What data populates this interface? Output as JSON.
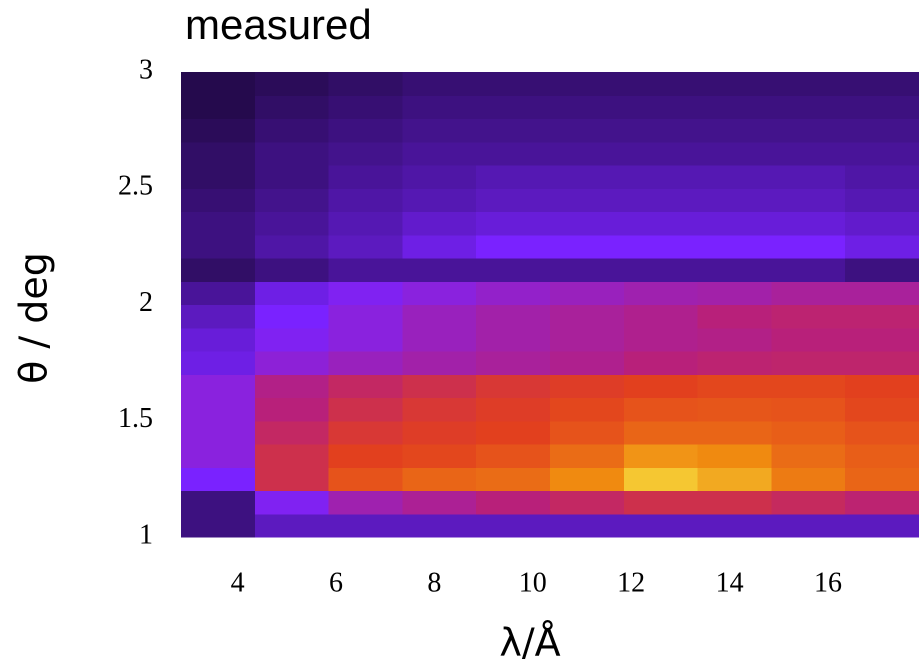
{
  "chart_data": {
    "type": "heatmap",
    "title": "measured",
    "x_label": "λ/Å",
    "y_label": "θ / deg",
    "xlim": [
      2.85,
      17.85
    ],
    "ylim": [
      1,
      3
    ],
    "xticks": [
      4,
      6,
      8,
      10,
      12,
      14,
      16
    ],
    "yticks": [
      1,
      1.5,
      2,
      2.5,
      3
    ],
    "colormap": [
      "#000000",
      "#7a22ff",
      "#b8207a",
      "#e2401e",
      "#f08a10",
      "#f8f048"
    ],
    "zlim": [
      0,
      1
    ],
    "xbins": [
      2.85,
      4.35,
      5.85,
      7.35,
      8.85,
      10.35,
      11.85,
      13.35,
      14.85,
      16.35,
      17.85
    ],
    "ybins": [
      1.0,
      1.1,
      1.2,
      1.3,
      1.4,
      1.5,
      1.6,
      1.7,
      1.8,
      1.9,
      2.0,
      2.1,
      2.2,
      2.3,
      2.4,
      2.5,
      2.6,
      2.7,
      2.8,
      2.9,
      3.0
    ],
    "z": [
      [
        0.1,
        0.15,
        0.15,
        0.15,
        0.15,
        0.15,
        0.15,
        0.15,
        0.15,
        0.15
      ],
      [
        0.1,
        0.22,
        0.32,
        0.36,
        0.4,
        0.45,
        0.5,
        0.5,
        0.46,
        0.42
      ],
      [
        0.2,
        0.5,
        0.65,
        0.7,
        0.72,
        0.8,
        0.92,
        0.86,
        0.76,
        0.7
      ],
      [
        0.25,
        0.5,
        0.6,
        0.62,
        0.65,
        0.72,
        0.82,
        0.8,
        0.72,
        0.68
      ],
      [
        0.25,
        0.45,
        0.55,
        0.58,
        0.6,
        0.65,
        0.7,
        0.7,
        0.68,
        0.65
      ],
      [
        0.25,
        0.4,
        0.5,
        0.55,
        0.58,
        0.62,
        0.65,
        0.66,
        0.65,
        0.62
      ],
      [
        0.25,
        0.38,
        0.45,
        0.5,
        0.55,
        0.58,
        0.6,
        0.62,
        0.62,
        0.6
      ],
      [
        0.18,
        0.26,
        0.3,
        0.33,
        0.35,
        0.37,
        0.4,
        0.42,
        0.43,
        0.43
      ],
      [
        0.17,
        0.22,
        0.25,
        0.3,
        0.33,
        0.35,
        0.37,
        0.38,
        0.4,
        0.4
      ],
      [
        0.15,
        0.2,
        0.25,
        0.3,
        0.33,
        0.35,
        0.37,
        0.4,
        0.42,
        0.42
      ],
      [
        0.12,
        0.18,
        0.22,
        0.25,
        0.28,
        0.3,
        0.32,
        0.33,
        0.35,
        0.35
      ],
      [
        0.08,
        0.1,
        0.12,
        0.12,
        0.12,
        0.12,
        0.12,
        0.12,
        0.12,
        0.1
      ],
      [
        0.1,
        0.13,
        0.15,
        0.18,
        0.2,
        0.2,
        0.2,
        0.2,
        0.2,
        0.18
      ],
      [
        0.1,
        0.12,
        0.14,
        0.16,
        0.17,
        0.17,
        0.17,
        0.17,
        0.17,
        0.16
      ],
      [
        0.09,
        0.11,
        0.13,
        0.14,
        0.15,
        0.15,
        0.15,
        0.15,
        0.15,
        0.14
      ],
      [
        0.08,
        0.1,
        0.12,
        0.13,
        0.14,
        0.14,
        0.14,
        0.14,
        0.14,
        0.13
      ],
      [
        0.08,
        0.1,
        0.11,
        0.12,
        0.12,
        0.12,
        0.12,
        0.12,
        0.12,
        0.12
      ],
      [
        0.07,
        0.09,
        0.1,
        0.11,
        0.11,
        0.11,
        0.11,
        0.11,
        0.11,
        0.11
      ],
      [
        0.06,
        0.08,
        0.09,
        0.1,
        0.1,
        0.1,
        0.1,
        0.1,
        0.1,
        0.1
      ],
      [
        0.06,
        0.07,
        0.08,
        0.09,
        0.09,
        0.09,
        0.09,
        0.09,
        0.09,
        0.09
      ]
    ]
  }
}
